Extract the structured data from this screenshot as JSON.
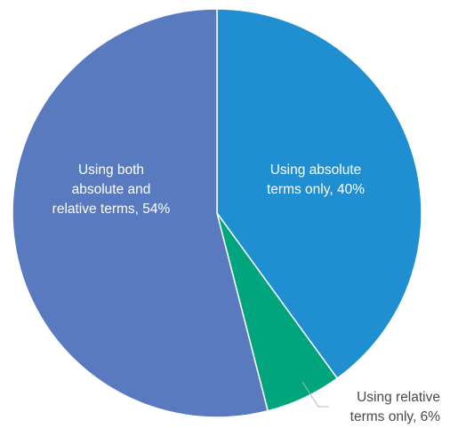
{
  "chart_data": {
    "type": "pie",
    "start_angle_deg": 0,
    "direction": "clockwise",
    "slices": [
      {
        "label_lines": [
          "Using absolute",
          "terms only, 40%"
        ],
        "value": 40,
        "color": "#1f8fd2",
        "label_color": "#ffffff",
        "label_position": "inside"
      },
      {
        "label_lines": [
          "Using relative",
          "terms only, 6%"
        ],
        "value": 6,
        "color": "#00a57e",
        "label_color": "#4a4a4a",
        "label_position": "outside-with-leader"
      },
      {
        "label_lines": [
          "Using both",
          "absolute and",
          "relative terms, 54%"
        ],
        "value": 54,
        "color": "#5a7abf",
        "label_color": "#ffffff",
        "label_position": "inside"
      }
    ],
    "slice_border_color": "#ffffff",
    "leader_line_color": "#b8b8b8"
  }
}
